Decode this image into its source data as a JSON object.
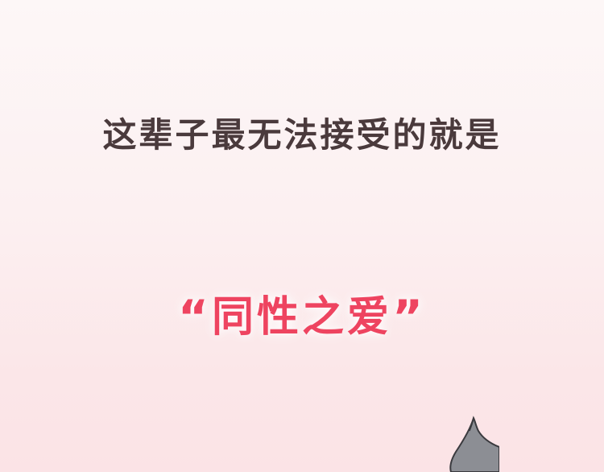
{
  "caption": {
    "line1": "这辈子最无法接受的就是",
    "line2": {
      "open_quote": "“",
      "text": "同性之爱",
      "close_quote": "”"
    }
  },
  "colors": {
    "line1_text": "#4a3a3c",
    "line2_text": "#ee4460",
    "background_top": "#fdf7f7",
    "background_bottom": "#fbe3e6",
    "figure_fill": "#8c8e94"
  },
  "icons": {
    "figure": "partial-character-silhouette-icon"
  }
}
